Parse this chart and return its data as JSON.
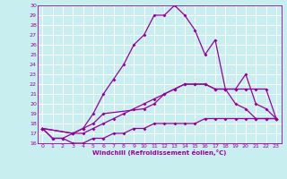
{
  "xlabel": "Windchill (Refroidissement éolien,°C)",
  "background_color": "#c8eef0",
  "grid_color": "#ffffff",
  "line_color": "#990099",
  "xlim": [
    -0.5,
    23.5
  ],
  "ylim": [
    16,
    30
  ],
  "xticks": [
    0,
    1,
    2,
    3,
    4,
    5,
    6,
    7,
    8,
    9,
    10,
    11,
    12,
    13,
    14,
    15,
    16,
    17,
    18,
    19,
    20,
    21,
    22,
    23
  ],
  "yticks": [
    16,
    17,
    18,
    19,
    20,
    21,
    22,
    23,
    24,
    25,
    26,
    27,
    28,
    29,
    30
  ],
  "curve1_x": [
    0,
    1,
    2,
    3,
    4,
    5,
    6,
    7,
    8,
    9,
    10,
    11,
    12,
    13,
    14,
    15,
    16,
    17,
    18,
    19,
    20,
    21,
    22,
    23
  ],
  "curve1_y": [
    17.5,
    16.5,
    16.5,
    17.0,
    17.5,
    19.0,
    21.0,
    22.5,
    24.0,
    26.0,
    27.0,
    29.0,
    29.0,
    30.0,
    29.0,
    27.5,
    25.0,
    26.5,
    21.5,
    20.0,
    19.5,
    18.5,
    18.5,
    18.5
  ],
  "curve2_x": [
    0,
    1,
    2,
    3,
    4,
    5,
    6,
    7,
    8,
    9,
    10,
    11,
    12,
    13,
    14,
    15,
    16,
    17,
    18,
    19,
    20,
    21,
    22,
    23
  ],
  "curve2_y": [
    17.5,
    16.5,
    16.5,
    16.0,
    16.0,
    16.5,
    16.5,
    17.0,
    17.0,
    17.5,
    17.5,
    18.0,
    18.0,
    18.0,
    18.0,
    18.0,
    18.5,
    18.5,
    18.5,
    18.5,
    18.5,
    18.5,
    18.5,
    18.5
  ],
  "curve3_x": [
    0,
    3,
    4,
    5,
    6,
    10,
    11,
    12,
    13,
    14,
    15,
    16,
    17,
    18,
    19,
    20,
    21,
    22,
    23
  ],
  "curve3_y": [
    17.5,
    17.0,
    17.5,
    18.0,
    19.0,
    19.5,
    20.0,
    21.0,
    21.5,
    22.0,
    22.0,
    22.0,
    21.5,
    21.5,
    21.5,
    23.0,
    20.0,
    19.5,
    18.5
  ],
  "curve4_x": [
    0,
    3,
    4,
    5,
    6,
    7,
    8,
    9,
    10,
    11,
    12,
    13,
    14,
    15,
    16,
    17,
    18,
    19,
    20,
    21,
    22,
    23
  ],
  "curve4_y": [
    17.5,
    17.0,
    17.0,
    17.5,
    18.0,
    18.5,
    19.0,
    19.5,
    20.0,
    20.5,
    21.0,
    21.5,
    22.0,
    22.0,
    22.0,
    21.5,
    21.5,
    21.5,
    21.5,
    21.5,
    21.5,
    18.5
  ]
}
